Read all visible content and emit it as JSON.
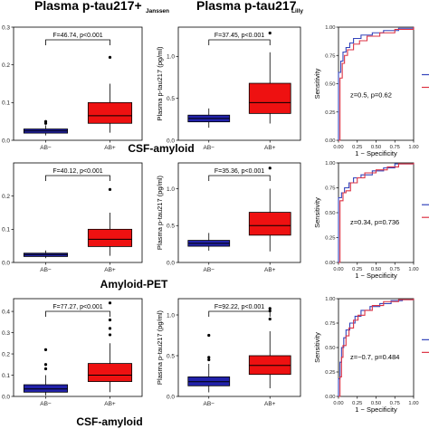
{
  "colors": {
    "negative": "#2222aa",
    "positive": "#ee1111",
    "roc_blue": "#3344bb",
    "roc_red": "#dd3344"
  },
  "headers": {
    "janssen_main": "Plasma p-tau217+",
    "janssen_sub": "Janssen",
    "lilly_main": "Plasma p-tau217",
    "lilly_sub": "Lilly"
  },
  "section_labels": [
    "CSF-amyloid",
    "Amyloid-PET",
    "CSF-amyloid"
  ],
  "chart_data": [
    {
      "type": "box",
      "panel": "row1-janssen",
      "categories": [
        "AB−",
        "AB+"
      ],
      "annotation": "F=46.74, p<0.001",
      "ylabel": "",
      "ylim": [
        0,
        0.3
      ],
      "yticks": [
        "0.0",
        "0.1",
        "0.2",
        "0.3"
      ],
      "boxes": [
        {
          "q1": 0.019,
          "median": 0.025,
          "q3": 0.03,
          "whislo": 0.013,
          "whishi": 0.04,
          "outliers": [
            0.045,
            0.05
          ]
        },
        {
          "q1": 0.045,
          "median": 0.065,
          "q3": 0.1,
          "whislo": 0.02,
          "whishi": 0.15,
          "outliers": [
            0.22
          ]
        }
      ]
    },
    {
      "type": "box",
      "panel": "row1-lilly",
      "categories": [
        "AB−",
        "AB+"
      ],
      "annotation": "F=37.45, p<0.001",
      "ylabel": "Plasma p-tau217 (pg/ml)",
      "ylim": [
        0,
        1.35
      ],
      "yticks": [
        "0.0",
        "0.5",
        "1.0"
      ],
      "boxes": [
        {
          "q1": 0.22,
          "median": 0.26,
          "q3": 0.3,
          "whislo": 0.15,
          "whishi": 0.38,
          "outliers": []
        },
        {
          "q1": 0.32,
          "median": 0.45,
          "q3": 0.68,
          "whislo": 0.2,
          "whishi": 1.05,
          "outliers": [
            1.28
          ]
        }
      ]
    },
    {
      "type": "roc",
      "panel": "row1-roc",
      "xlabel": "1 − Specificity",
      "ylabel": "Sensitivity",
      "xticks": [
        "0.00",
        "0.25",
        "0.50",
        "0.75",
        "1.00"
      ],
      "yticks": [
        "0.00",
        "0.25",
        "0.50",
        "0.75",
        "1.00"
      ],
      "annotation": "z=0.5, p=0.62",
      "series": [
        {
          "points": [
            [
              0,
              0
            ],
            [
              0,
              0.6
            ],
            [
              0.03,
              0.7
            ],
            [
              0.06,
              0.78
            ],
            [
              0.1,
              0.82
            ],
            [
              0.15,
              0.86
            ],
            [
              0.2,
              0.9
            ],
            [
              0.3,
              0.93
            ],
            [
              0.45,
              0.95
            ],
            [
              0.6,
              0.97
            ],
            [
              0.8,
              0.99
            ],
            [
              1,
              1
            ]
          ]
        },
        {
          "points": [
            [
              0,
              0
            ],
            [
              0.02,
              0.55
            ],
            [
              0.05,
              0.68
            ],
            [
              0.08,
              0.75
            ],
            [
              0.12,
              0.8
            ],
            [
              0.2,
              0.85
            ],
            [
              0.28,
              0.88
            ],
            [
              0.38,
              0.92
            ],
            [
              0.55,
              0.95
            ],
            [
              0.75,
              0.98
            ],
            [
              1,
              1
            ]
          ]
        }
      ]
    },
    {
      "type": "box",
      "panel": "row2-janssen",
      "categories": [
        "AB−",
        "AB+"
      ],
      "annotation": "F=40.12, p<0.001",
      "ylabel": "",
      "ylim": [
        0,
        0.3
      ],
      "yticks": [
        "0.0",
        "0.1",
        "0.2"
      ],
      "boxes": [
        {
          "q1": 0.018,
          "median": 0.024,
          "q3": 0.028,
          "whislo": 0.013,
          "whishi": 0.036,
          "outliers": []
        },
        {
          "q1": 0.048,
          "median": 0.07,
          "q3": 0.1,
          "whislo": 0.02,
          "whishi": 0.15,
          "outliers": [
            0.22
          ]
        }
      ]
    },
    {
      "type": "box",
      "panel": "row2-lilly",
      "categories": [
        "AB−",
        "AB+"
      ],
      "annotation": "F=35.36, p<0.001",
      "ylabel": "Plasma p-tau217 (pg/ml)",
      "ylim": [
        0,
        1.35
      ],
      "yticks": [
        "0.0",
        "0.5",
        "1.0"
      ],
      "boxes": [
        {
          "q1": 0.22,
          "median": 0.26,
          "q3": 0.3,
          "whislo": 0.16,
          "whishi": 0.4,
          "outliers": []
        },
        {
          "q1": 0.37,
          "median": 0.5,
          "q3": 0.68,
          "whislo": 0.15,
          "whishi": 1.0,
          "outliers": [
            1.28
          ]
        }
      ]
    },
    {
      "type": "roc",
      "panel": "row2-roc",
      "xlabel": "1 − Specificity",
      "ylabel": "Sensitivity",
      "xticks": [
        "0.00",
        "0.25",
        "0.50",
        "0.75",
        "1.00"
      ],
      "yticks": [
        "0.00",
        "0.25",
        "0.50",
        "0.75",
        "1.00"
      ],
      "annotation": "z=0.34, p=0.736",
      "series": [
        {
          "points": [
            [
              0,
              0
            ],
            [
              0,
              0.65
            ],
            [
              0.04,
              0.7
            ],
            [
              0.08,
              0.75
            ],
            [
              0.14,
              0.8
            ],
            [
              0.2,
              0.85
            ],
            [
              0.3,
              0.88
            ],
            [
              0.45,
              0.92
            ],
            [
              0.6,
              0.95
            ],
            [
              0.75,
              0.99
            ],
            [
              1,
              1
            ]
          ]
        },
        {
          "points": [
            [
              0,
              0
            ],
            [
              0.02,
              0.62
            ],
            [
              0.06,
              0.7
            ],
            [
              0.1,
              0.72
            ],
            [
              0.16,
              0.8
            ],
            [
              0.25,
              0.85
            ],
            [
              0.35,
              0.9
            ],
            [
              0.5,
              0.93
            ],
            [
              0.65,
              0.96
            ],
            [
              0.8,
              0.99
            ],
            [
              1,
              1
            ]
          ]
        }
      ]
    },
    {
      "type": "box",
      "panel": "row3-janssen",
      "categories": [
        "AB−",
        "AB+"
      ],
      "annotation": "F=77.27, p<0.001",
      "ylabel": "",
      "ylim": [
        0,
        0.46
      ],
      "yticks": [
        "0.0",
        "0.1",
        "0.2",
        "0.3",
        "0.4"
      ],
      "boxes": [
        {
          "q1": 0.02,
          "median": 0.035,
          "q3": 0.055,
          "whislo": 0.005,
          "whishi": 0.1,
          "outliers": [
            0.13,
            0.15,
            0.22
          ]
        },
        {
          "q1": 0.07,
          "median": 0.1,
          "q3": 0.155,
          "whislo": 0.02,
          "whishi": 0.25,
          "outliers": [
            0.29,
            0.32,
            0.36,
            0.44
          ]
        }
      ]
    },
    {
      "type": "box",
      "panel": "row3-lilly",
      "categories": [
        "AB−",
        "AB+"
      ],
      "annotation": "F=92.22, p<0.001",
      "ylabel": "Plasma p-tau217 (pg/ml)",
      "ylim": [
        0,
        1.2
      ],
      "yticks": [
        "0.0",
        "0.5",
        "1.0"
      ],
      "boxes": [
        {
          "q1": 0.13,
          "median": 0.18,
          "q3": 0.24,
          "whislo": 0.05,
          "whishi": 0.4,
          "outliers": [
            0.45,
            0.48,
            0.75
          ]
        },
        {
          "q1": 0.27,
          "median": 0.38,
          "q3": 0.5,
          "whislo": 0.1,
          "whishi": 0.8,
          "outliers": [
            0.95,
            1.05,
            1.08
          ]
        }
      ]
    },
    {
      "type": "roc",
      "panel": "row3-roc",
      "xlabel": "1 − Specificity",
      "ylabel": "Sensitivity",
      "xticks": [
        "0.00",
        "0.25",
        "0.50",
        "0.75",
        "1.00"
      ],
      "yticks": [
        "0.00",
        "0.25",
        "0.50",
        "0.75",
        "1.00"
      ],
      "annotation": "z=−0.7, p=0.484",
      "series": [
        {
          "points": [
            [
              0,
              0
            ],
            [
              0,
              0.18
            ],
            [
              0.02,
              0.35
            ],
            [
              0.04,
              0.5
            ],
            [
              0.07,
              0.6
            ],
            [
              0.1,
              0.68
            ],
            [
              0.15,
              0.75
            ],
            [
              0.22,
              0.82
            ],
            [
              0.3,
              0.88
            ],
            [
              0.42,
              0.92
            ],
            [
              0.55,
              0.95
            ],
            [
              0.7,
              0.98
            ],
            [
              0.85,
              0.99
            ],
            [
              1,
              1
            ]
          ]
        },
        {
          "points": [
            [
              0,
              0
            ],
            [
              0.02,
              0.2
            ],
            [
              0.04,
              0.4
            ],
            [
              0.06,
              0.52
            ],
            [
              0.1,
              0.62
            ],
            [
              0.14,
              0.7
            ],
            [
              0.2,
              0.78
            ],
            [
              0.26,
              0.83
            ],
            [
              0.35,
              0.88
            ],
            [
              0.45,
              0.93
            ],
            [
              0.6,
              0.97
            ],
            [
              0.8,
              0.99
            ],
            [
              1,
              1
            ]
          ]
        }
      ]
    }
  ]
}
